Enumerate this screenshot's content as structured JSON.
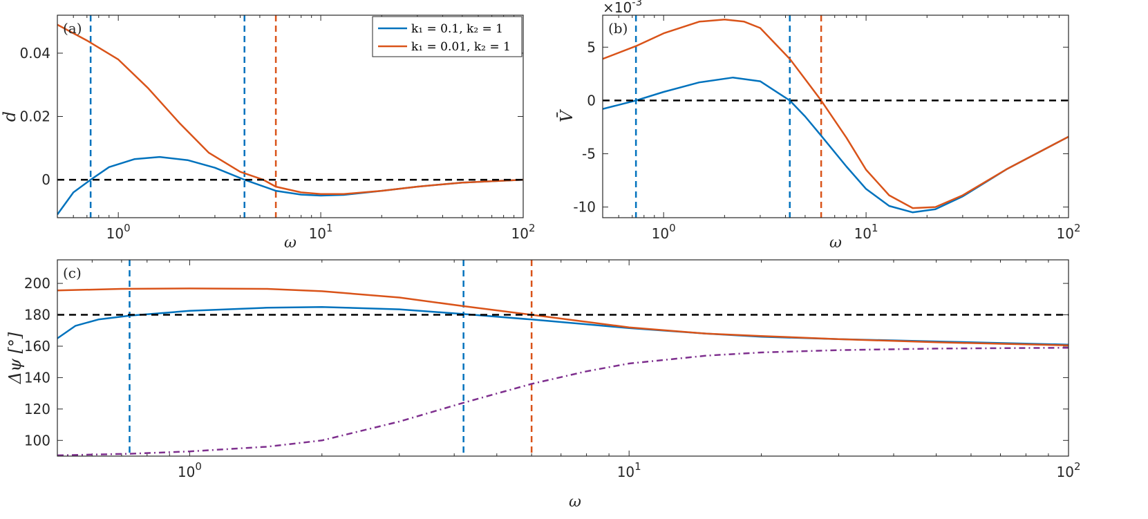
{
  "chart_data": [
    {
      "type": "line",
      "panel": "(a)",
      "xscale": "log",
      "xlim": [
        0.5,
        100
      ],
      "ylim": [
        -0.012,
        0.052
      ],
      "xticks": [
        1,
        10,
        100
      ],
      "xtick_labels": [
        [
          "10",
          "0"
        ],
        [
          "10",
          "1"
        ],
        [
          "10",
          "2"
        ]
      ],
      "yticks": [
        0,
        0.02,
        0.04
      ],
      "ytick_labels": [
        "0",
        "0.02",
        "0.04"
      ],
      "xlabel": "ω",
      "ylabel": "d",
      "legend": {
        "position": "top-right",
        "entries": [
          "k₁ = 0.1, k₂ = 1",
          "k₁ = 0.01, k₂ = 1"
        ]
      },
      "series": [
        {
          "name": "k₁ = 0.1, k₂ = 1",
          "color": "#0072BD",
          "style": "solid",
          "x": [
            0.5,
            0.6,
            0.73,
            0.9,
            1.2,
            1.6,
            2.2,
            3.0,
            4.2,
            6,
            8,
            10,
            13,
            20,
            30,
            50,
            100
          ],
          "y": [
            -0.011,
            -0.004,
            0.0,
            0.004,
            0.0065,
            0.0072,
            0.0062,
            0.0038,
            0.0,
            -0.0035,
            -0.0047,
            -0.005,
            -0.0048,
            -0.0035,
            -0.0022,
            -0.0009,
            0.0
          ]
        },
        {
          "name": "k₁ = 0.01, k₂ = 1",
          "color": "#D95319",
          "style": "solid",
          "x": [
            0.5,
            0.7,
            1.0,
            1.4,
            2.0,
            2.8,
            4.0,
            5.2,
            6,
            8,
            10,
            13,
            20,
            30,
            50,
            100
          ],
          "y": [
            0.049,
            0.044,
            0.038,
            0.029,
            0.018,
            0.0085,
            0.0025,
            0.0,
            -0.0022,
            -0.004,
            -0.0045,
            -0.0045,
            -0.0035,
            -0.0022,
            -0.0009,
            0.0
          ]
        },
        {
          "name": "zero reference",
          "color": "#000000",
          "style": "dashed",
          "x": [
            0.5,
            100
          ],
          "y": [
            0,
            0
          ]
        }
      ],
      "vlines": [
        {
          "x": 0.73,
          "color": "#0072BD"
        },
        {
          "x": 4.2,
          "color": "#0072BD"
        },
        {
          "x": 6.0,
          "color": "#D95319"
        }
      ]
    },
    {
      "type": "line",
      "panel": "(b)",
      "xscale": "log",
      "xlim": [
        0.5,
        100
      ],
      "ylim": [
        -11,
        8
      ],
      "xticks": [
        1,
        10,
        100
      ],
      "xtick_labels": [
        [
          "10",
          "0"
        ],
        [
          "10",
          "1"
        ],
        [
          "10",
          "2"
        ]
      ],
      "yticks": [
        -10,
        -5,
        0,
        5
      ],
      "ytick_labels": [
        "-10",
        "-5",
        "0",
        "5"
      ],
      "exponent_label": [
        "×10",
        "-3"
      ],
      "xlabel": "ω",
      "ylabel": "V̄",
      "series": [
        {
          "name": "k₁ = 0.1, k₂ = 1",
          "color": "#0072BD",
          "style": "solid",
          "x": [
            0.5,
            0.73,
            1.0,
            1.5,
            2.2,
            3.0,
            4.2,
            5,
            6,
            8,
            10,
            13,
            17,
            22,
            30,
            50,
            100
          ],
          "y": [
            -0.8,
            0.0,
            0.8,
            1.7,
            2.15,
            1.8,
            0.0,
            -1.5,
            -3.3,
            -6.2,
            -8.3,
            -9.9,
            -10.5,
            -10.2,
            -9.0,
            -6.4,
            -3.4
          ]
        },
        {
          "name": "k₁ = 0.01, k₂ = 1",
          "color": "#D95319",
          "style": "solid",
          "x": [
            0.5,
            0.73,
            1.0,
            1.5,
            2.0,
            2.5,
            3.0,
            4.2,
            5,
            6,
            8,
            10,
            13,
            17,
            22,
            30,
            50,
            100
          ],
          "y": [
            3.9,
            5.1,
            6.3,
            7.4,
            7.6,
            7.4,
            6.8,
            3.9,
            2.0,
            0.0,
            -3.5,
            -6.5,
            -8.9,
            -10.1,
            -10.0,
            -8.9,
            -6.4,
            -3.4
          ]
        },
        {
          "name": "zero reference",
          "color": "#000000",
          "style": "dashed",
          "x": [
            0.5,
            100
          ],
          "y": [
            0,
            0
          ]
        }
      ],
      "vlines": [
        {
          "x": 0.73,
          "color": "#0072BD"
        },
        {
          "x": 4.2,
          "color": "#0072BD"
        },
        {
          "x": 6.0,
          "color": "#D95319"
        }
      ]
    },
    {
      "type": "line",
      "panel": "(c)",
      "xscale": "log",
      "xlim": [
        0.5,
        100
      ],
      "ylim": [
        90,
        215
      ],
      "xticks": [
        1,
        10,
        100
      ],
      "xtick_labels": [
        [
          "10",
          "0"
        ],
        [
          "10",
          "1"
        ],
        [
          "10",
          "2"
        ]
      ],
      "yticks": [
        100,
        120,
        140,
        160,
        180,
        200
      ],
      "ytick_labels": [
        "100",
        "120",
        "140",
        "160",
        "180",
        "200"
      ],
      "xlabel": "ω",
      "ylabel": "Δψ [°]",
      "series": [
        {
          "name": "k₁ = 0.1, k₂ = 1",
          "color": "#0072BD",
          "style": "solid",
          "x": [
            0.5,
            0.55,
            0.62,
            0.73,
            1.0,
            1.5,
            2.0,
            3.0,
            4.2,
            6,
            8,
            10,
            15,
            20,
            30,
            50,
            100
          ],
          "y": [
            165,
            173,
            177,
            179.5,
            182.5,
            184.5,
            185,
            183.5,
            180.5,
            177,
            174,
            171.5,
            168,
            166,
            164.5,
            163,
            161
          ]
        },
        {
          "name": "k₁ = 0.01, k₂ = 1",
          "color": "#D95319",
          "style": "solid",
          "x": [
            0.5,
            0.7,
            1.0,
            1.5,
            2.0,
            3.0,
            4.2,
            6,
            8,
            10,
            15,
            20,
            30,
            50,
            100
          ],
          "y": [
            195.5,
            196.5,
            196.8,
            196.5,
            195,
            191,
            185.5,
            180,
            175.5,
            172,
            168,
            166.5,
            164.5,
            162.5,
            160.5
          ]
        },
        {
          "name": "reference",
          "color": "#7E2F8E",
          "style": "dashdot",
          "x": [
            0.5,
            0.73,
            1.0,
            1.5,
            2.0,
            3.0,
            4.2,
            6,
            8,
            10,
            15,
            20,
            30,
            50,
            100
          ],
          "y": [
            90.5,
            91.5,
            93,
            96,
            100,
            112,
            124,
            136,
            144,
            149,
            154,
            156,
            157.5,
            158.5,
            159
          ]
        },
        {
          "name": "reference 180",
          "color": "#000000",
          "style": "dashed",
          "x": [
            0.5,
            100
          ],
          "y": [
            180,
            180
          ]
        }
      ],
      "vlines": [
        {
          "x": 0.73,
          "color": "#0072BD"
        },
        {
          "x": 4.2,
          "color": "#0072BD"
        },
        {
          "x": 6.0,
          "color": "#D95319"
        }
      ]
    }
  ]
}
